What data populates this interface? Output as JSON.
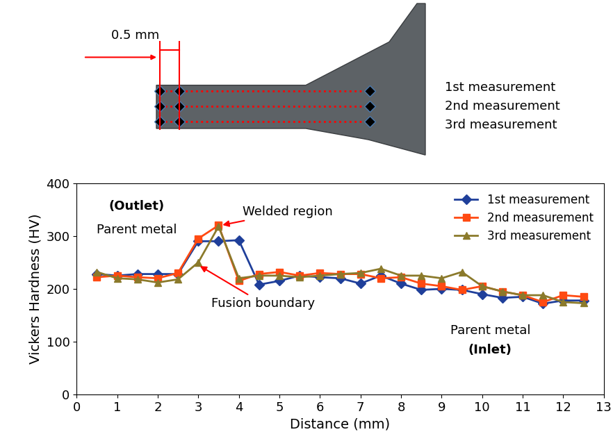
{
  "chart_data": {
    "type": "line",
    "x_label": "Distance (mm)",
    "y_label": "Vickers Hardness (HV)",
    "x": [
      0.5,
      1,
      1.5,
      2,
      2.5,
      3,
      3.5,
      4,
      4.5,
      5,
      5.5,
      6,
      6.5,
      7,
      7.5,
      8,
      8.5,
      9,
      9.5,
      10,
      10.5,
      11,
      11.5,
      12,
      12.5
    ],
    "series": [
      {
        "name": "1st measurement",
        "color": "#1F3F9A",
        "marker": "diamond",
        "values": [
          228,
          225,
          228,
          228,
          228,
          290,
          290,
          292,
          208,
          215,
          225,
          222,
          220,
          210,
          225,
          210,
          198,
          200,
          198,
          190,
          183,
          185,
          172,
          178,
          178
        ]
      },
      {
        "name": "2nd measurement",
        "color": "#FF4A12",
        "marker": "square",
        "values": [
          222,
          225,
          222,
          220,
          230,
          295,
          320,
          215,
          228,
          232,
          225,
          230,
          228,
          228,
          220,
          222,
          210,
          205,
          198,
          205,
          195,
          188,
          175,
          188,
          185
        ]
      },
      {
        "name": "3rd measurement",
        "color": "#8B7A2B",
        "marker": "triangle",
        "values": [
          232,
          220,
          218,
          212,
          218,
          250,
          318,
          220,
          225,
          225,
          222,
          225,
          228,
          230,
          238,
          225,
          225,
          220,
          232,
          205,
          195,
          188,
          188,
          175,
          173
        ]
      }
    ],
    "xlim": [
      0,
      13
    ],
    "xticks": [
      0,
      1,
      2,
      3,
      4,
      5,
      6,
      7,
      8,
      9,
      10,
      11,
      12,
      13
    ],
    "ylim": [
      0,
      400
    ],
    "yticks": [
      0,
      100,
      200,
      300,
      400
    ],
    "grid": false,
    "legend": "upper right",
    "annotations": {
      "outlet_label": "(Outlet)",
      "outlet_text": "Parent metal",
      "welded": "Welded region",
      "fusion": "Fusion boundary",
      "inlet_text": "Parent metal",
      "inlet_label": "(Inlet)"
    }
  },
  "diagram": {
    "dimension": "0.5 mm",
    "rows": [
      "1st measurement",
      "2nd measurement",
      "3rd measurement"
    ]
  }
}
